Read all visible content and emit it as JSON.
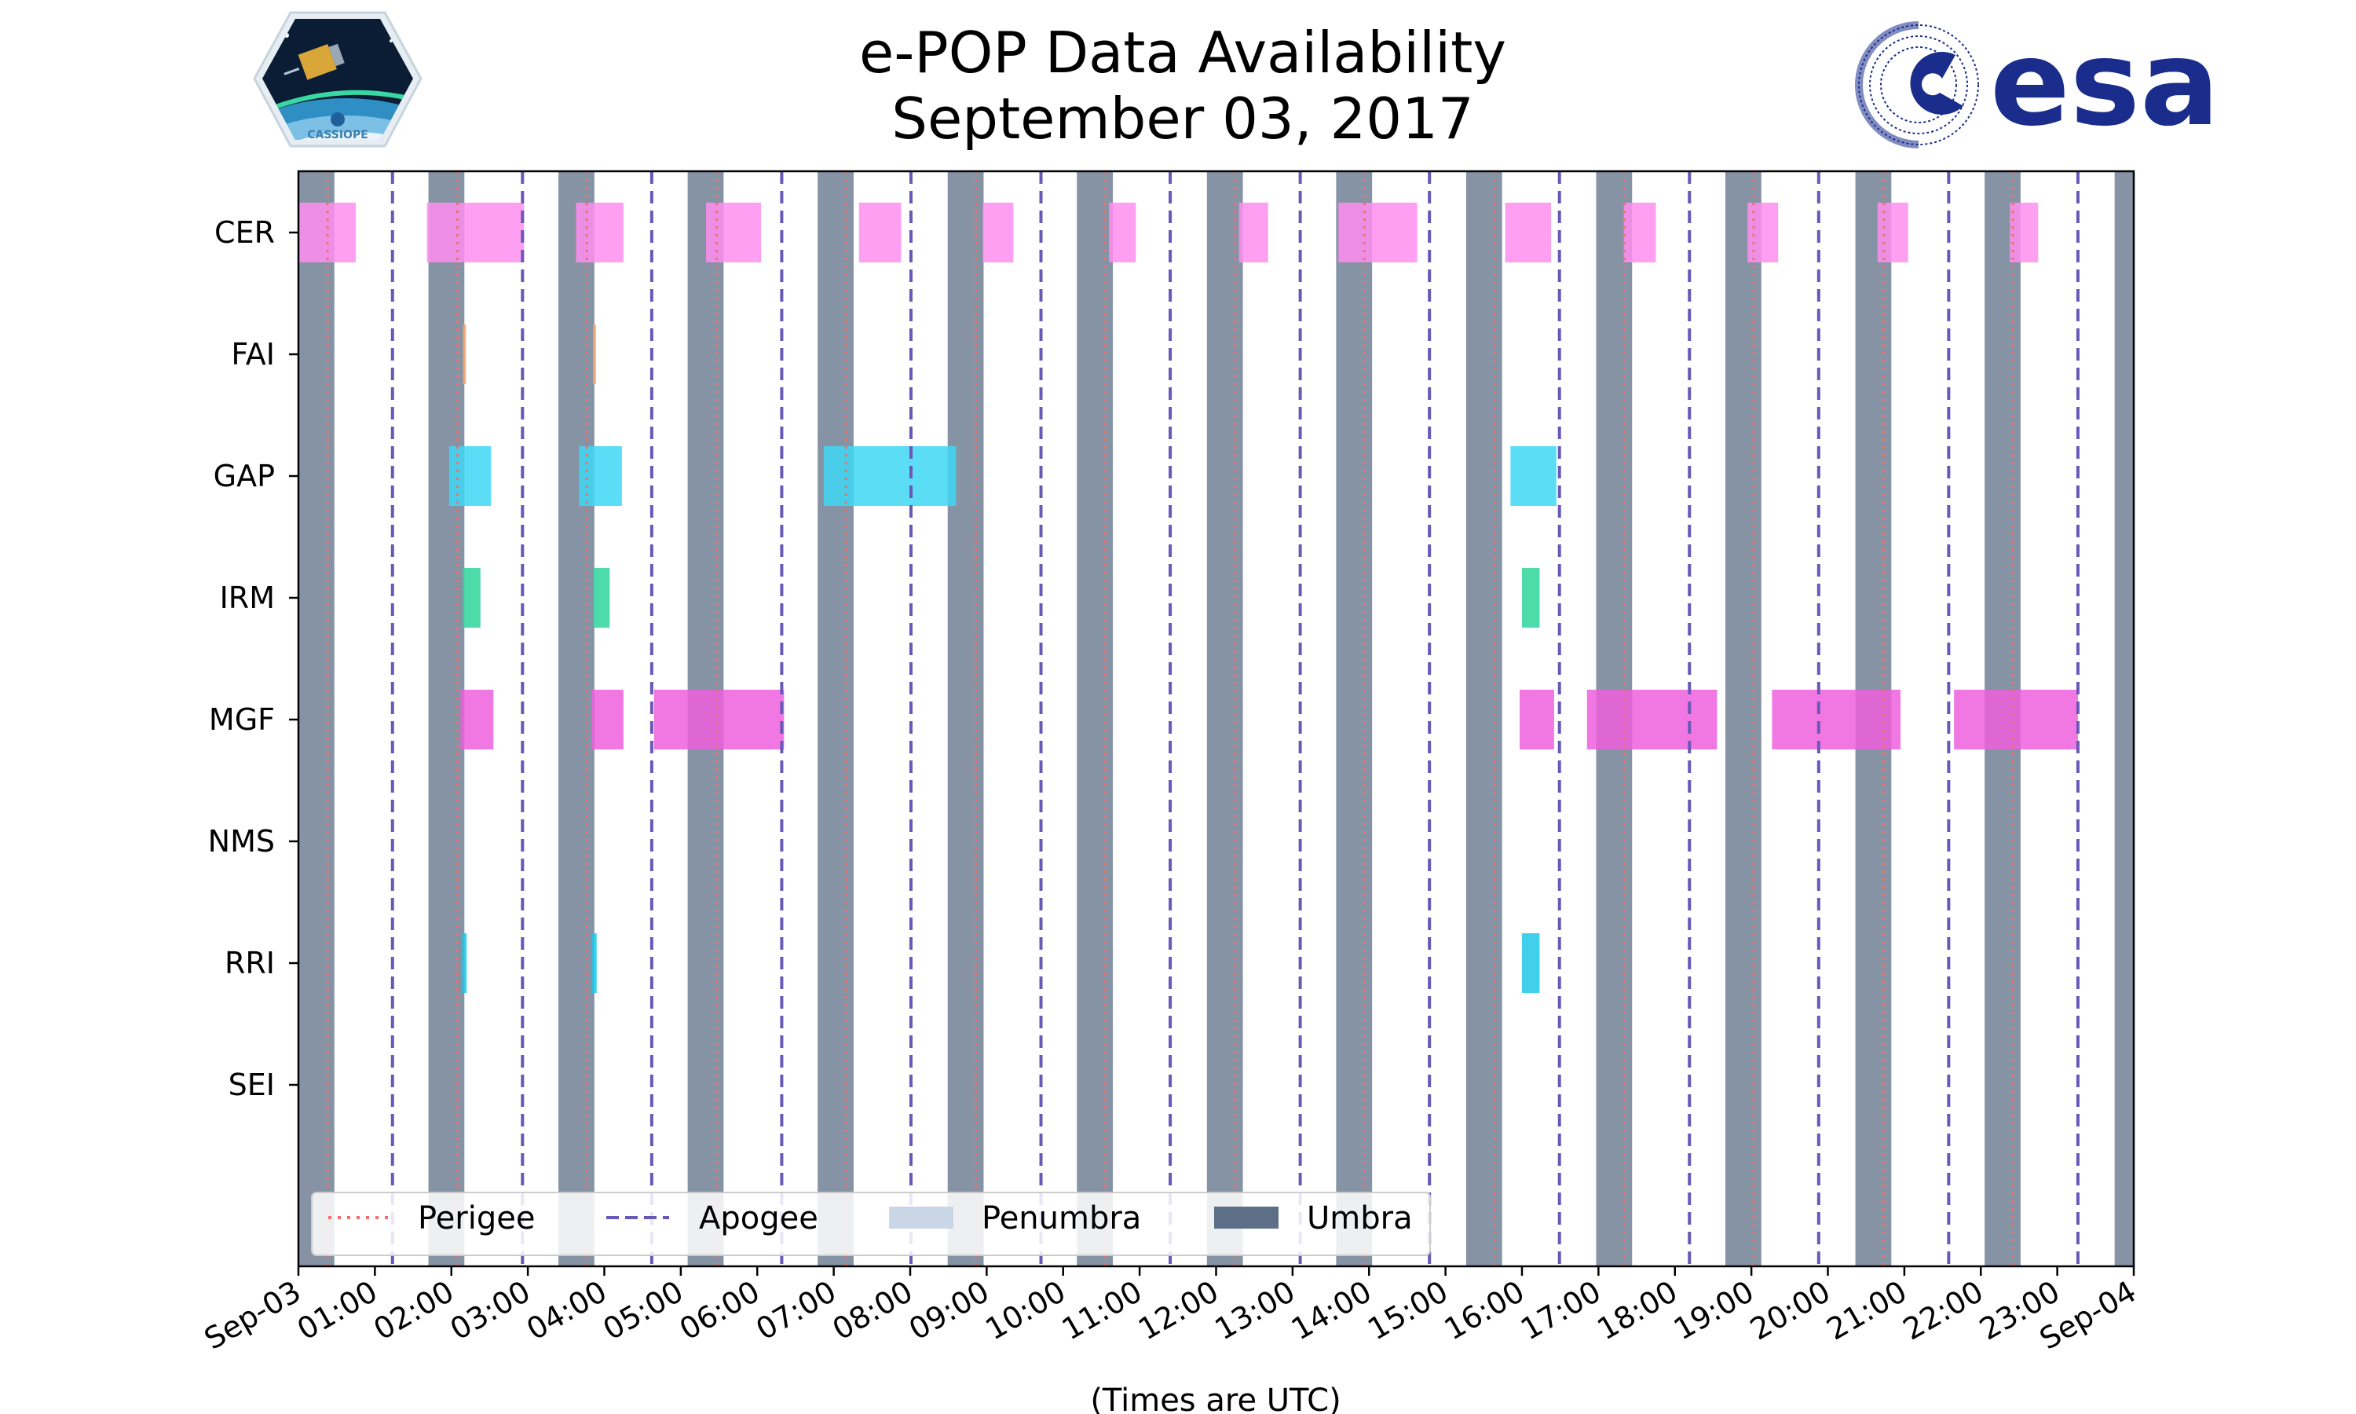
{
  "header": {
    "title_line1": "e-POP Data Availability",
    "title_line2": "September 03, 2017",
    "mission_badge_text": "CASSIOPE",
    "agency_logo_text": "esa"
  },
  "colors": {
    "CER": "#ff8ef0",
    "FAI": "#f5a06a",
    "GAP": "#3fd7f5",
    "IRM": "#2fd59b",
    "MGF": "#ef5fdd",
    "RRI": "#1ec8e8",
    "umbra": "#5d6f86",
    "penumbra": "#c9d6e6",
    "perigee": "#ef6f6f",
    "apogee": "#6a58b8",
    "esa_blue": "#1a2d8c"
  },
  "chart_data": {
    "type": "timeline",
    "title": "e-POP Data Availability September 03, 2017",
    "xlabel": "(Times are UTC)",
    "ylabel": "",
    "x_unit": "hours UTC",
    "xlim": [
      0,
      24
    ],
    "xtick_labels": [
      "Sep-03",
      "01:00",
      "02:00",
      "03:00",
      "04:00",
      "05:00",
      "06:00",
      "07:00",
      "08:00",
      "09:00",
      "10:00",
      "11:00",
      "12:00",
      "13:00",
      "14:00",
      "15:00",
      "16:00",
      "17:00",
      "18:00",
      "19:00",
      "20:00",
      "21:00",
      "22:00",
      "23:00",
      "Sep-04"
    ],
    "instruments": [
      "CER",
      "FAI",
      "GAP",
      "IRM",
      "MGF",
      "NMS",
      "RRI",
      "SEI"
    ],
    "intervals": {
      "CER": [
        [
          0.0,
          0.75
        ],
        [
          1.68,
          2.95
        ],
        [
          3.63,
          4.25
        ],
        [
          5.33,
          6.05
        ],
        [
          7.33,
          7.88
        ],
        [
          8.95,
          9.35
        ],
        [
          10.6,
          10.95
        ],
        [
          12.3,
          12.68
        ],
        [
          13.6,
          14.63
        ],
        [
          15.78,
          16.38
        ],
        [
          17.33,
          17.75
        ],
        [
          18.95,
          19.35
        ],
        [
          20.65,
          21.05
        ],
        [
          22.38,
          22.75
        ]
      ],
      "FAI": [
        [
          2.15,
          2.19
        ],
        [
          3.85,
          3.89
        ]
      ],
      "GAP": [
        [
          1.97,
          2.52
        ],
        [
          3.67,
          4.23
        ],
        [
          6.87,
          8.6
        ],
        [
          15.85,
          16.45
        ]
      ],
      "IRM": [
        [
          2.15,
          2.38
        ],
        [
          3.85,
          4.07
        ],
        [
          16.0,
          16.23
        ]
      ],
      "MGF": [
        [
          2.12,
          2.55
        ],
        [
          3.83,
          4.25
        ],
        [
          4.65,
          6.35
        ],
        [
          15.97,
          16.42
        ],
        [
          16.85,
          18.55
        ],
        [
          19.27,
          20.95
        ],
        [
          21.65,
          23.27
        ]
      ],
      "NMS": [],
      "RRI": [
        [
          2.14,
          2.2
        ],
        [
          3.84,
          3.9
        ],
        [
          16.0,
          16.23
        ]
      ],
      "SEI": []
    },
    "umbra": [
      [
        0.0,
        0.47
      ],
      [
        1.7,
        2.17
      ],
      [
        3.4,
        3.87
      ],
      [
        5.09,
        5.56
      ],
      [
        6.79,
        7.26
      ],
      [
        8.49,
        8.96
      ],
      [
        10.18,
        10.65
      ],
      [
        11.88,
        12.35
      ],
      [
        13.57,
        14.04
      ],
      [
        15.27,
        15.74
      ],
      [
        16.97,
        17.44
      ],
      [
        18.66,
        19.13
      ],
      [
        20.36,
        20.83
      ],
      [
        22.05,
        22.52
      ],
      [
        23.75,
        24.0
      ]
    ],
    "penumbra": [],
    "perigee": [
      0.38,
      2.08,
      3.77,
      5.47,
      7.16,
      8.86,
      10.55,
      12.25,
      13.94,
      15.64,
      17.34,
      19.03,
      20.73,
      22.42
    ],
    "apogee": [
      1.23,
      2.93,
      4.62,
      6.32,
      8.01,
      9.71,
      11.4,
      13.1,
      14.79,
      16.49,
      18.19,
      19.88,
      21.58,
      23.27
    ],
    "legend": {
      "position": "lower-left",
      "entries": [
        "Perigee",
        "Apogee",
        "Penumbra",
        "Umbra"
      ]
    }
  }
}
